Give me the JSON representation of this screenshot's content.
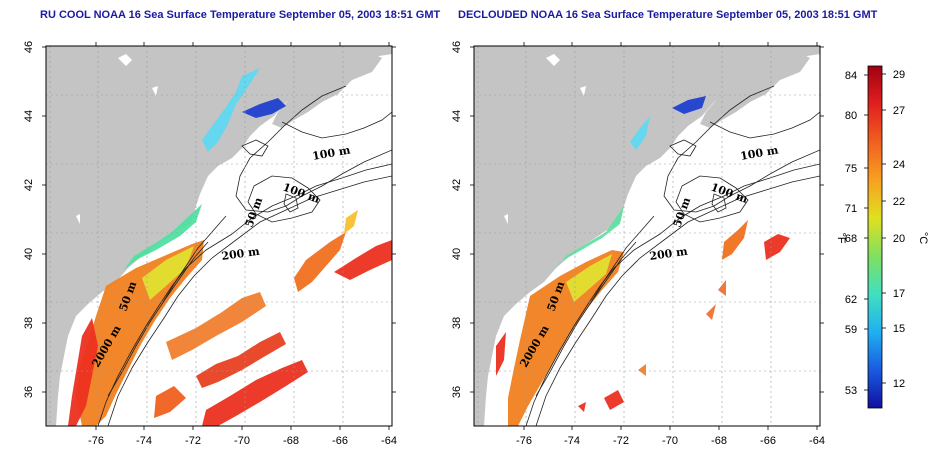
{
  "maps": [
    {
      "id": "left",
      "title": "RU COOL NOAA 16 Sea Surface Temperature September 05, 2003 18:51 GMT",
      "contour_labels": [
        "100 m",
        "100 m",
        "50 m",
        "200 m",
        "50 m",
        "2000 m"
      ]
    },
    {
      "id": "right",
      "title": "DECLOUDED NOAA 16 Sea Surface Temperature September 05, 2003 18:51 GMT",
      "contour_labels": [
        "100 m",
        "100 m",
        "50 m",
        "200 m",
        "50 m",
        "2000 m"
      ]
    }
  ],
  "axes": {
    "lat_ticks": [
      "36",
      "38",
      "40",
      "42",
      "44",
      "46"
    ],
    "lon_ticks": [
      "-76",
      "-74",
      "-72",
      "-70",
      "-68",
      "-66",
      "-64"
    ]
  },
  "colorbar": {
    "unit_f": "°F",
    "unit_c": "°C",
    "f_ticks": [
      "84",
      "80",
      "75",
      "71",
      "68",
      "62",
      "59",
      "53"
    ],
    "c_ticks": [
      "29",
      "27",
      "24",
      "22",
      "20",
      "17",
      "15",
      "12"
    ],
    "colors": [
      "#1010a0",
      "#1a5ae0",
      "#20b0f0",
      "#40e0c0",
      "#80e060",
      "#e0e020",
      "#f8a020",
      "#f06020",
      "#e02020",
      "#a00010"
    ]
  }
}
